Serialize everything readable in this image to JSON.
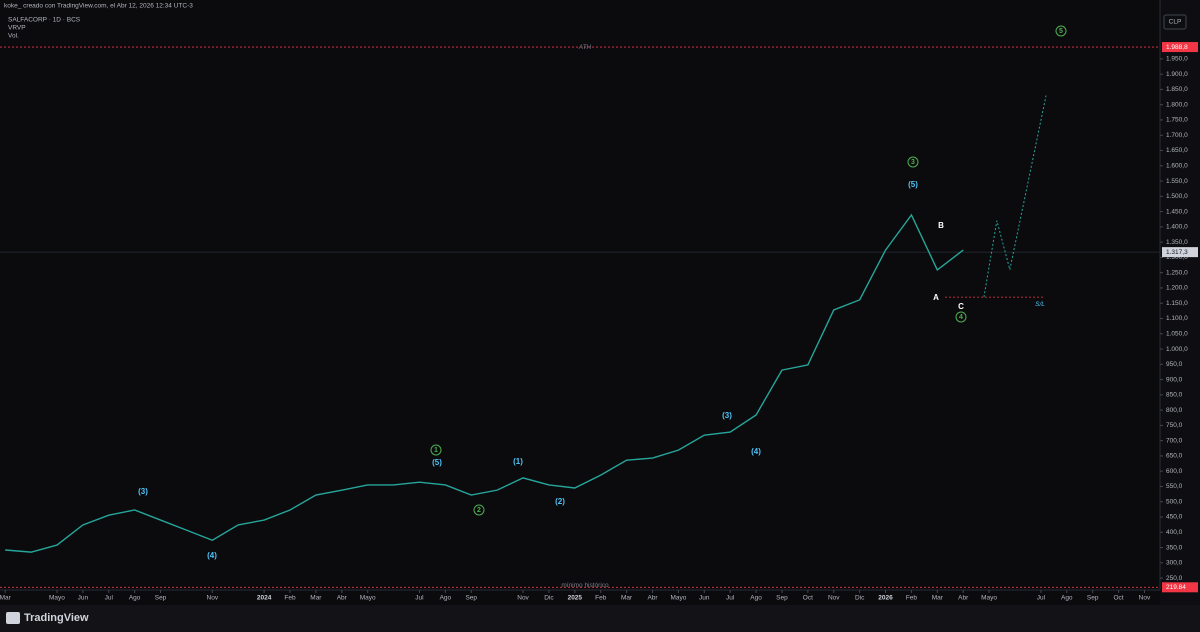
{
  "header": {
    "byline": "koke_ creado con TradingView.com, el Abr 12, 2026 12:34 UTC-3",
    "symbol": "SALFACORP · 1D · BCS",
    "indicators": [
      "VRVP",
      "Vol."
    ],
    "currency": "CLP",
    "logo": "TradingView"
  },
  "chart_data": {
    "type": "line",
    "color": "#26a69a",
    "values": [
      342,
      335,
      358,
      424,
      456,
      473,
      440,
      407,
      374,
      424,
      440,
      473,
      522,
      538,
      555,
      555,
      564,
      555,
      522,
      538,
      578,
      555,
      545,
      587,
      636,
      643,
      669,
      718,
      728,
      784,
      931,
      948,
      1128,
      1161,
      1324,
      1439,
      1259,
      1324
    ],
    "xlim": [
      -0.2,
      44.6
    ],
    "xticks": [
      {
        "value": 0,
        "label": "Mar"
      },
      {
        "value": 2,
        "label": "Mayo"
      },
      {
        "value": 3,
        "label": "Jun"
      },
      {
        "value": 4,
        "label": "Jul"
      },
      {
        "value": 5,
        "label": "Ago"
      },
      {
        "value": 6,
        "label": "Sep"
      },
      {
        "value": 8,
        "label": "Nov"
      },
      {
        "value": 10,
        "label": "2024"
      },
      {
        "value": 11,
        "label": "Feb"
      },
      {
        "value": 12,
        "label": "Mar"
      },
      {
        "value": 13,
        "label": "Abr"
      },
      {
        "value": 14,
        "label": "Mayo"
      },
      {
        "value": 16,
        "label": "Jul"
      },
      {
        "value": 17,
        "label": "Ago"
      },
      {
        "value": 18,
        "label": "Sep"
      },
      {
        "value": 20,
        "label": "Nov"
      },
      {
        "value": 21,
        "label": "Dic"
      },
      {
        "value": 22,
        "label": "2025"
      },
      {
        "value": 23,
        "label": "Feb"
      },
      {
        "value": 24,
        "label": "Mar"
      },
      {
        "value": 25,
        "label": "Abr"
      },
      {
        "value": 26,
        "label": "Mayo"
      },
      {
        "value": 27,
        "label": "Jun"
      },
      {
        "value": 28,
        "label": "Jul"
      },
      {
        "value": 29,
        "label": "Ago"
      },
      {
        "value": 30,
        "label": "Sep"
      },
      {
        "value": 31,
        "label": "Oct"
      },
      {
        "value": 32,
        "label": "Nov"
      },
      {
        "value": 33,
        "label": "Dic"
      },
      {
        "value": 34,
        "label": "2026"
      },
      {
        "value": 35,
        "label": "Feb"
      },
      {
        "value": 36,
        "label": "Mar"
      },
      {
        "value": 37,
        "label": "Abr"
      },
      {
        "value": 38,
        "label": "Mayo"
      },
      {
        "value": 40,
        "label": "Jul"
      },
      {
        "value": 41,
        "label": "Ago"
      },
      {
        "value": 42,
        "label": "Sep"
      },
      {
        "value": 43,
        "label": "Oct"
      },
      {
        "value": 44,
        "label": "Nov"
      }
    ],
    "ylim": [
      211,
      2097
    ],
    "yticks": [
      {
        "value": 250,
        "label": "250,0"
      },
      {
        "value": 300,
        "label": "300,0"
      },
      {
        "value": 350,
        "label": "350,0"
      },
      {
        "value": 400,
        "label": "400,0"
      },
      {
        "value": 450,
        "label": "450,0"
      },
      {
        "value": 500,
        "label": "500,0"
      },
      {
        "value": 550,
        "label": "550,0"
      },
      {
        "value": 600,
        "label": "600,0"
      },
      {
        "value": 650,
        "label": "650,0"
      },
      {
        "value": 700,
        "label": "700,0"
      },
      {
        "value": 750,
        "label": "750,0"
      },
      {
        "value": 800,
        "label": "800,0"
      },
      {
        "value": 850,
        "label": "850,0"
      },
      {
        "value": 900,
        "label": "900,0"
      },
      {
        "value": 950,
        "label": "950,0"
      },
      {
        "value": 1000,
        "label": "1.000,0"
      },
      {
        "value": 1050,
        "label": "1.050,0"
      },
      {
        "value": 1100,
        "label": "1.100,0"
      },
      {
        "value": 1150,
        "label": "1.150,0"
      },
      {
        "value": 1200,
        "label": "1.200,0"
      },
      {
        "value": 1250,
        "label": "1.250,0"
      },
      {
        "value": 1300,
        "label": "1.300,0"
      },
      {
        "value": 1350,
        "label": "1.350,0"
      },
      {
        "value": 1400,
        "label": "1.400,0"
      },
      {
        "value": 1450,
        "label": "1.450,0"
      },
      {
        "value": 1500,
        "label": "1.500,0"
      },
      {
        "value": 1550,
        "label": "1.550,0"
      },
      {
        "value": 1600,
        "label": "1.600,0"
      },
      {
        "value": 1650,
        "label": "1.650,0"
      },
      {
        "value": 1700,
        "label": "1.700,0"
      },
      {
        "value": 1750,
        "label": "1.750,0"
      },
      {
        "value": 1800,
        "label": "1.800,0"
      },
      {
        "value": 1850,
        "label": "1.850,0"
      },
      {
        "value": 1900,
        "label": "1.900,0"
      },
      {
        "value": 1950,
        "label": "1.950,0"
      }
    ],
    "levels": {
      "ath": {
        "value": 1988.8,
        "label": "1.988,8",
        "name": "ATH"
      },
      "current": {
        "value": 1317.3,
        "label": "1.317,3"
      },
      "low": {
        "value": 219.84,
        "label": "219.84",
        "name": "mínimo histórico"
      },
      "stop": {
        "value": 1170,
        "name": "S/L"
      }
    },
    "projection": [
      1170,
      1420,
      1260,
      1830
    ],
    "annotations": [
      "(3)",
      "(4)",
      "1",
      "(5)",
      "2",
      "(1)",
      "(2)",
      "(3)",
      "(4)",
      "3",
      "(5)",
      "B",
      "A",
      "C",
      "4",
      "5"
    ]
  }
}
